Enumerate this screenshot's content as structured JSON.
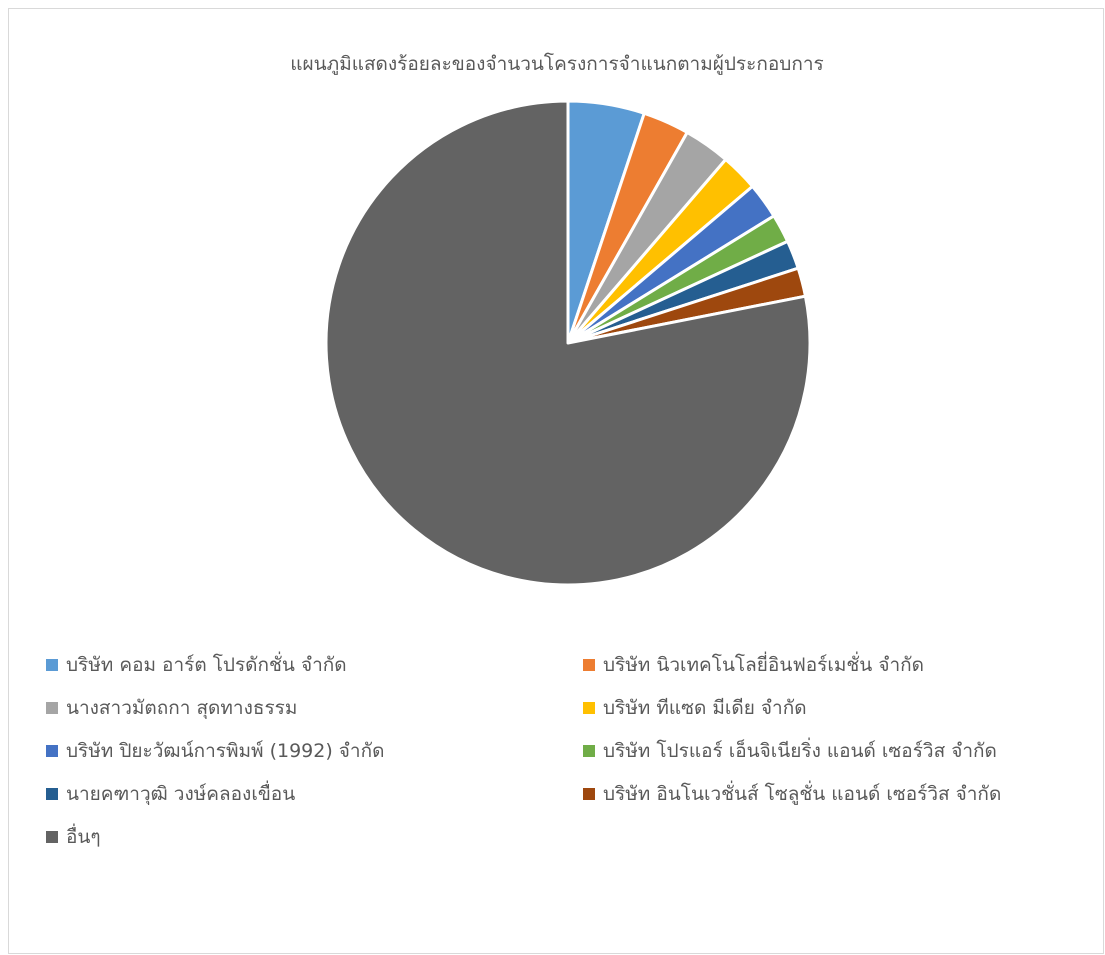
{
  "chart_data": {
    "type": "pie",
    "title": "แผนภูมิแสดงร้อยละของจำนวนโครงการจำแนกตามผู้ประกอบการ",
    "legend_position": "bottom",
    "series": [
      {
        "label": "บริษัท คอม อาร์ต โปรดักชั่น จำกัด",
        "value": 5.1,
        "color": "#5b9bd5"
      },
      {
        "label": "บริษัท นิวเทคโนโลยี่อินฟอร์เมชั่น จำกัด",
        "value": 3.1,
        "color": "#ed7d31"
      },
      {
        "label": "นางสาวมัตถกา สุดทางธรรม",
        "value": 3.1,
        "color": "#a5a5a5"
      },
      {
        "label": "บริษัท ทีแซด มีเดีย จำกัด",
        "value": 2.5,
        "color": "#ffc000"
      },
      {
        "label": "บริษัท ปิยะวัฒน์การพิมพ์ (1992) จำกัด",
        "value": 2.4,
        "color": "#4472c4"
      },
      {
        "label": "บริษัท โปรแอร์ เอ็นจิเนียริ่ง แอนด์ เซอร์วิส จำกัด",
        "value": 1.9,
        "color": "#70ad47"
      },
      {
        "label": "นายคฑาวุฒิ วงษ์คลองเขื่อน",
        "value": 1.9,
        "color": "#255e91"
      },
      {
        "label": "บริษัท อินโนเวชั่นส์ โซลูชั่น แอนด์ เซอร์วิส จำกัด",
        "value": 1.9,
        "color": "#9e480e"
      },
      {
        "label": "อื่นๆ",
        "value": 78.1,
        "color": "#636363"
      }
    ]
  }
}
